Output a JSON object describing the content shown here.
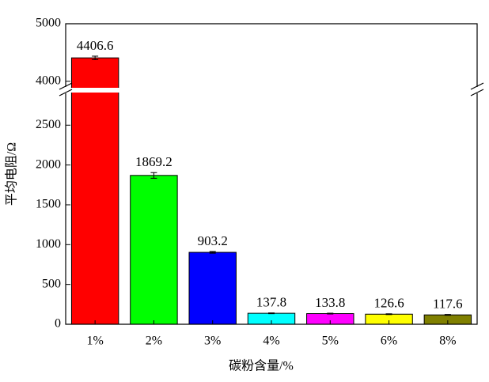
{
  "chart_data": {
    "type": "bar",
    "x_label": "碳粉含量/%",
    "y_label": "平均电阻/Ω",
    "categories": [
      "1%",
      "2%",
      "3%",
      "4%",
      "5%",
      "6%",
      "8%"
    ],
    "values": [
      4406.6,
      1869.2,
      903.2,
      137.8,
      133.8,
      126.6,
      117.6
    ],
    "errors": [
      30,
      35,
      10,
      5,
      5,
      5,
      5
    ],
    "colors": [
      "#ff0000",
      "#00ff00",
      "#0000ff",
      "#00ffff",
      "#ff00ff",
      "#ffff00",
      "#808000"
    ],
    "ylim": [
      0,
      5000
    ],
    "ybreak": [
      2900,
      3900
    ],
    "yticks": [
      0,
      500,
      1000,
      1500,
      2000,
      2500,
      4000,
      5000
    ]
  }
}
